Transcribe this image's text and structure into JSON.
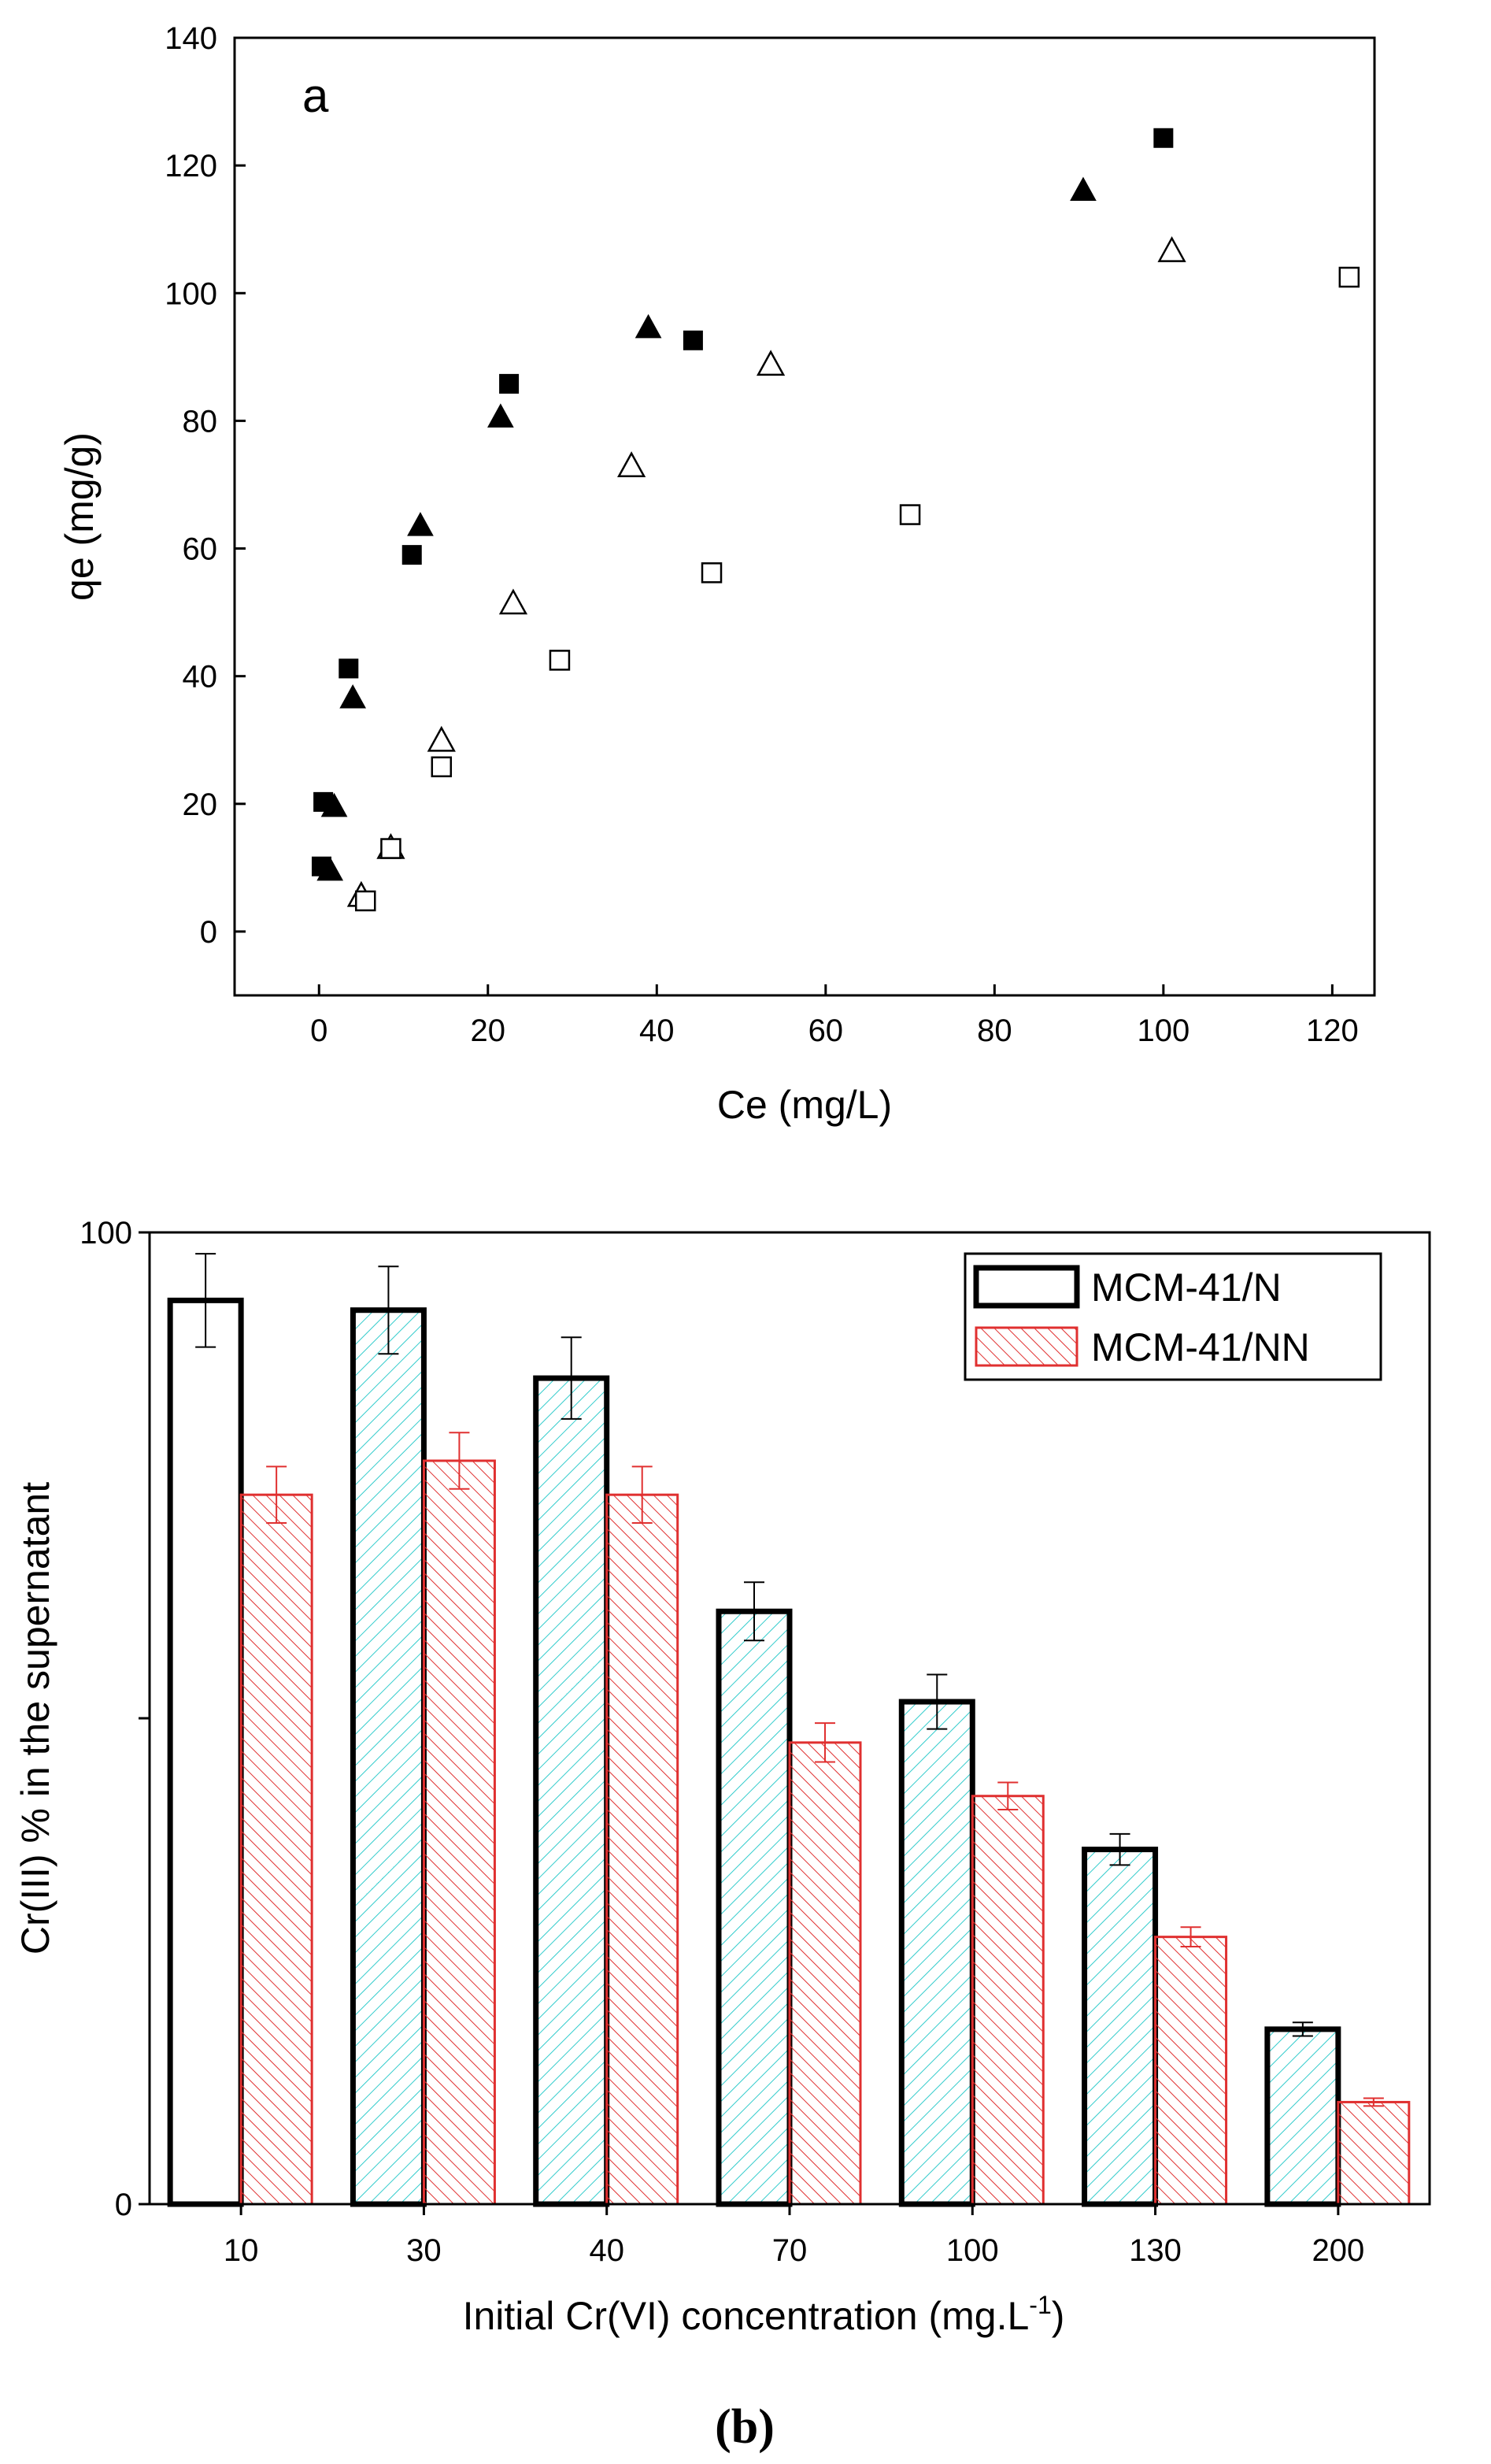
{
  "figure_label": "(b)",
  "chart_data": [
    {
      "type": "scatter",
      "panel_label": "a",
      "xlabel": "Ce (mg/L)",
      "ylabel": "qe (mg/g)",
      "xlim": [
        -10,
        125
      ],
      "ylim": [
        -10,
        140
      ],
      "xticks": [
        0,
        20,
        40,
        60,
        80,
        100,
        120
      ],
      "yticks": [
        0,
        20,
        40,
        60,
        80,
        100,
        120,
        140
      ],
      "legend": "none",
      "series": [
        {
          "name": "filled squares",
          "marker": "square",
          "filled": true,
          "points": [
            [
              0.3,
              10.2
            ],
            [
              0.5,
              20.3
            ],
            [
              3.5,
              41.2
            ],
            [
              11,
              59
            ],
            [
              22.5,
              85.8
            ],
            [
              44.3,
              92.6
            ],
            [
              100,
              124.3
            ]
          ]
        },
        {
          "name": "filled triangles",
          "marker": "triangle",
          "filled": true,
          "points": [
            [
              1.3,
              9.5
            ],
            [
              1.8,
              19.5
            ],
            [
              4,
              36.5
            ],
            [
              12,
              63.5
            ],
            [
              21.5,
              80.5
            ],
            [
              39,
              94.5
            ],
            [
              90.5,
              116
            ]
          ]
        },
        {
          "name": "open triangles",
          "marker": "triangle",
          "filled": false,
          "points": [
            [
              5,
              5.5
            ],
            [
              8.5,
              13
            ],
            [
              14.5,
              29.8
            ],
            [
              23,
              51.3
            ],
            [
              37,
              72.8
            ],
            [
              53.5,
              88.7
            ],
            [
              101,
              106.5
            ]
          ]
        },
        {
          "name": "open squares",
          "marker": "square",
          "filled": false,
          "points": [
            [
              5.5,
              4.8
            ],
            [
              8.5,
              13
            ],
            [
              14.5,
              25.8
            ],
            [
              28.5,
              42.5
            ],
            [
              46.5,
              56.2
            ],
            [
              70,
              65.3
            ],
            [
              122,
              102.5
            ]
          ]
        }
      ]
    },
    {
      "type": "bar",
      "xlabel_main": "Initial Cr(VI) concentration (mg.L",
      "xlabel_sup": "-1",
      "xlabel_end": ")",
      "ylabel": "Cr(III) % in the supernatant",
      "ylim": [
        0,
        100
      ],
      "yticks": [
        0,
        50,
        100
      ],
      "ytick_labels": [
        "0",
        "",
        "100"
      ],
      "categories": [
        "10",
        "30",
        "40",
        "70",
        "100",
        "130",
        "200"
      ],
      "legend_position": "top-right",
      "series": [
        {
          "name": "MCM-41/N",
          "values": [
            93,
            92,
            85,
            61,
            51.7,
            36.5,
            18
          ],
          "errors": [
            4.8,
            4.5,
            4.2,
            3,
            2.8,
            1.6,
            0.7
          ]
        },
        {
          "name": "MCM-41/NN",
          "values": [
            73,
            76.5,
            73,
            47.5,
            42,
            27.5,
            10.5
          ],
          "errors": [
            2.9,
            2.9,
            2.9,
            2,
            1.4,
            1,
            0.4
          ]
        }
      ]
    }
  ]
}
